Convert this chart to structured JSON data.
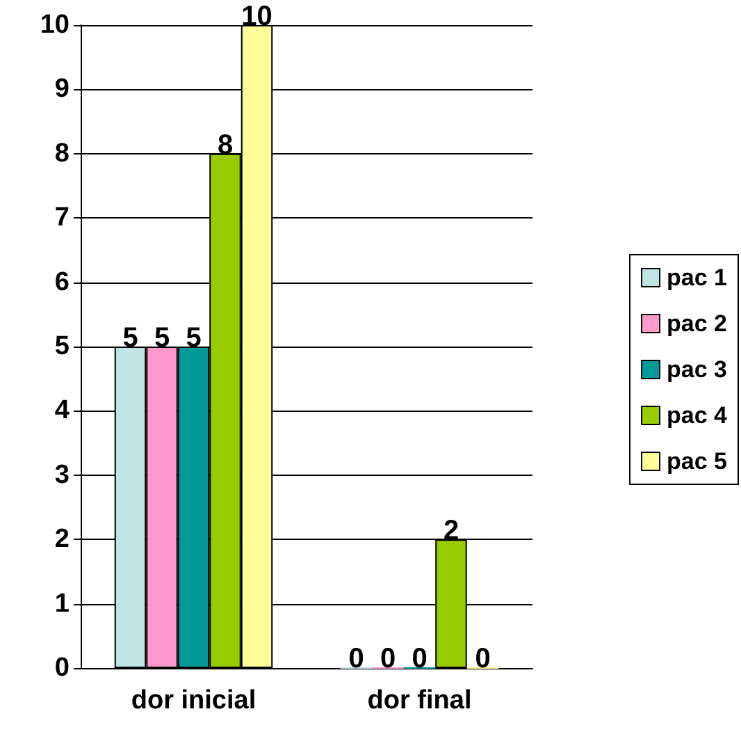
{
  "chart_data": {
    "type": "bar",
    "categories": [
      "dor inicial",
      "dor final"
    ],
    "series": [
      {
        "name": "pac 1",
        "color": "#c0e4e4",
        "values": [
          5,
          0
        ]
      },
      {
        "name": "pac 2",
        "color": "#ff99cc",
        "values": [
          5,
          0
        ]
      },
      {
        "name": "pac 3",
        "color": "#009999",
        "values": [
          5,
          0
        ]
      },
      {
        "name": "pac 4",
        "color": "#99cc00",
        "values": [
          8,
          2
        ]
      },
      {
        "name": "pac 5",
        "color": "#ffff99",
        "values": [
          10,
          0
        ]
      }
    ],
    "ylim": [
      0,
      10
    ],
    "yticks": [
      0,
      1,
      2,
      3,
      4,
      5,
      6,
      7,
      8,
      9,
      10
    ],
    "grid": "y",
    "legend": "right",
    "data_labels": true
  }
}
